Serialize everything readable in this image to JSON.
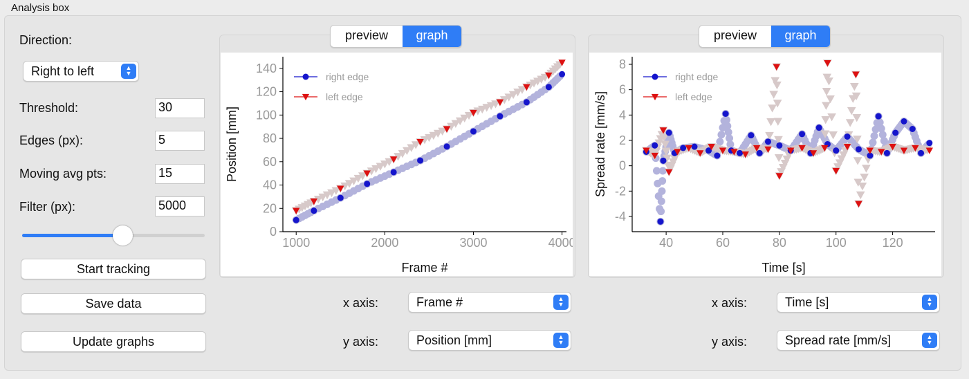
{
  "window": {
    "group_title": "Analysis box"
  },
  "controls": {
    "direction_label": "Direction:",
    "direction_value": "Right to left",
    "threshold_label": "Threshold:",
    "threshold_value": "30",
    "edges_label": "Edges (px):",
    "edges_value": "5",
    "moving_avg_label": "Moving avg pts:",
    "moving_avg_value": "15",
    "filter_label": "Filter (px):",
    "filter_value": "5000",
    "slider_fraction": 0.55,
    "start_tracking": "Start tracking",
    "save_data": "Save data",
    "update_graphs": "Update graphs"
  },
  "colors": {
    "accent": "#2f7df6",
    "right_edge": "#1515cc",
    "left_edge": "#dd1111",
    "right_edge_faded": "#b3b3dc",
    "left_edge_faded": "#d7c9c9"
  },
  "panel_left": {
    "tabs": [
      "preview",
      "graph"
    ],
    "active_tab": "graph",
    "x_axis_label": "x axis:",
    "x_axis_value": "Frame #",
    "y_axis_label": "y axis:",
    "y_axis_value": "Position [mm]"
  },
  "panel_right": {
    "tabs": [
      "preview",
      "graph"
    ],
    "active_tab": "graph",
    "x_axis_label": "x axis:",
    "x_axis_value": "Time [s]",
    "y_axis_label": "y axis:",
    "y_axis_value": "Spread rate [mm/s]"
  },
  "chart_data": [
    {
      "type": "scatter",
      "xlabel": "Frame #",
      "ylabel": "Position [mm]",
      "xlim": [
        850,
        4050
      ],
      "ylim": [
        0,
        150
      ],
      "xticks": [
        1000,
        2000,
        3000,
        4000
      ],
      "yticks": [
        0,
        20,
        40,
        60,
        80,
        100,
        120,
        140
      ],
      "grid": false,
      "legend": "top-left",
      "series": [
        {
          "name": "right edge",
          "marker": "circle",
          "x": [
            1000,
            1200,
            1500,
            1800,
            2100,
            2400,
            2700,
            3000,
            3300,
            3600,
            3850,
            4000
          ],
          "y": [
            10,
            18,
            29,
            41,
            51,
            61,
            73,
            86,
            99,
            111,
            124,
            135
          ]
        },
        {
          "name": "left edge",
          "marker": "triangle-down",
          "x": [
            1000,
            1200,
            1500,
            1800,
            2100,
            2400,
            2700,
            3000,
            3300,
            3600,
            3850,
            4000
          ],
          "y": [
            18,
            26,
            37,
            50,
            62,
            77,
            88,
            102,
            111,
            124,
            134,
            145
          ]
        }
      ]
    },
    {
      "type": "scatter",
      "xlabel": "Time [s]",
      "ylabel": "Spread rate [mm/s]",
      "xlim": [
        28,
        135
      ],
      "ylim": [
        -5.2,
        8.6
      ],
      "xticks": [
        40,
        60,
        80,
        100,
        120
      ],
      "yticks": [
        -4,
        -2,
        0,
        2,
        4,
        6,
        8
      ],
      "grid": false,
      "legend": "top-left",
      "series": [
        {
          "name": "right edge",
          "marker": "circle",
          "x": [
            33,
            36,
            38,
            39,
            41,
            43,
            46,
            50,
            55,
            58,
            61,
            63,
            66,
            70,
            73,
            76,
            80,
            84,
            88,
            91,
            94,
            97,
            100,
            104,
            108,
            112,
            115,
            118,
            121,
            124,
            127,
            130,
            133
          ],
          "y": [
            1.1,
            1.6,
            -4.4,
            0.4,
            2.6,
            1.0,
            1.4,
            1.5,
            1.2,
            0.8,
            4.1,
            1.2,
            1.0,
            2.4,
            1.0,
            1.9,
            1.6,
            1.2,
            2.5,
            1.0,
            3.0,
            1.7,
            1.2,
            2.3,
            1.3,
            0.8,
            3.9,
            1.0,
            2.6,
            3.5,
            2.9,
            1.0,
            1.8
          ]
        },
        {
          "name": "left edge",
          "marker": "triangle-down",
          "x": [
            33,
            36,
            39,
            41,
            44,
            48,
            52,
            56,
            60,
            64,
            68,
            72,
            76,
            79,
            80,
            84,
            88,
            92,
            96,
            97,
            100,
            104,
            107,
            108,
            112,
            116,
            120,
            124,
            128,
            133
          ],
          "y": [
            1.2,
            0.8,
            2.8,
            -0.5,
            1.1,
            1.4,
            1.0,
            1.5,
            1.2,
            1.1,
            0.9,
            1.4,
            1.3,
            7.8,
            -0.8,
            1.2,
            1.4,
            1.0,
            1.4,
            8.1,
            -0.4,
            1.5,
            7.2,
            -3.0,
            1.2,
            1.1,
            1.5,
            1.2,
            1.4,
            1.2
          ]
        }
      ]
    }
  ]
}
